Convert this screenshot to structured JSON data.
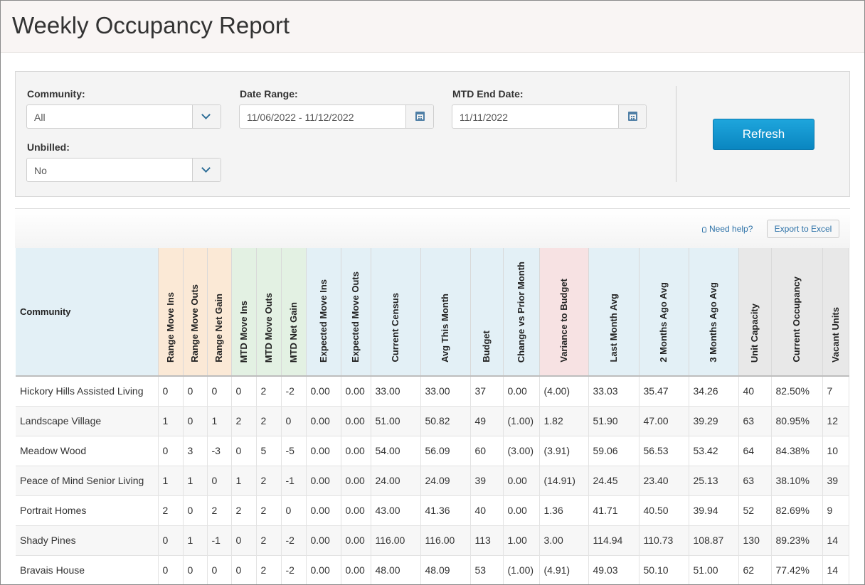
{
  "page": {
    "title": "Weekly Occupancy Report"
  },
  "filters": {
    "community_label": "Community:",
    "community_value": "All",
    "date_range_label": "Date Range:",
    "date_range_value": "11/06/2022 - 11/12/2022",
    "mtd_end_label": "MTD End Date:",
    "mtd_end_value": "11/11/2022",
    "unbilled_label": "Unbilled:",
    "unbilled_value": "No",
    "refresh_label": "Refresh"
  },
  "toolbar": {
    "help_label": "Need help?",
    "export_label": "Export to Excel"
  },
  "colors": {
    "header_blue": "#e3f0f6",
    "header_orange": "#fbe9d6",
    "header_green": "#e3f1e3",
    "header_pink": "#f7e2e3",
    "header_gray": "#e8e8e8",
    "refresh_button": "#0a86c0"
  },
  "table": {
    "columns": [
      "Community",
      "Range Move Ins",
      "Range Move Outs",
      "Range Net Gain",
      "MTD Move Ins",
      "MTD Move Outs",
      "MTD Net Gain",
      "Expected Move Ins",
      "Expected Move Outs",
      "Current Census",
      "Avg This Month",
      "Budget",
      "Change vs Prior Month",
      "Variance to Budget",
      "Last Month Avg",
      "2 Months Ago Avg",
      "3 Months Ago Avg",
      "Unit Capacity",
      "Current Occupancy",
      "Vacant Units"
    ],
    "rows": [
      [
        "Hickory Hills Assisted Living",
        "0",
        "0",
        "0",
        "0",
        "2",
        "-2",
        "0.00",
        "0.00",
        "33.00",
        "33.00",
        "37",
        "0.00",
        "(4.00)",
        "33.03",
        "35.47",
        "34.26",
        "40",
        "82.50%",
        "7"
      ],
      [
        "Landscape Village",
        "1",
        "0",
        "1",
        "2",
        "2",
        "0",
        "0.00",
        "0.00",
        "51.00",
        "50.82",
        "49",
        "(1.00)",
        "1.82",
        "51.90",
        "47.00",
        "39.29",
        "63",
        "80.95%",
        "12"
      ],
      [
        "Meadow Wood",
        "0",
        "3",
        "-3",
        "0",
        "5",
        "-5",
        "0.00",
        "0.00",
        "54.00",
        "56.09",
        "60",
        "(3.00)",
        "(3.91)",
        "59.06",
        "56.53",
        "53.42",
        "64",
        "84.38%",
        "10"
      ],
      [
        "Peace of Mind Senior Living",
        "1",
        "1",
        "0",
        "1",
        "2",
        "-1",
        "0.00",
        "0.00",
        "24.00",
        "24.09",
        "39",
        "0.00",
        "(14.91)",
        "24.45",
        "23.40",
        "25.13",
        "63",
        "38.10%",
        "39"
      ],
      [
        "Portrait Homes",
        "2",
        "0",
        "2",
        "2",
        "2",
        "0",
        "0.00",
        "0.00",
        "43.00",
        "41.36",
        "40",
        "0.00",
        "1.36",
        "41.71",
        "40.50",
        "39.94",
        "52",
        "82.69%",
        "9"
      ],
      [
        "Shady Pines",
        "0",
        "1",
        "-1",
        "0",
        "2",
        "-2",
        "0.00",
        "0.00",
        "116.00",
        "116.00",
        "113",
        "1.00",
        "3.00",
        "114.94",
        "110.73",
        "108.87",
        "130",
        "89.23%",
        "14"
      ],
      [
        "Bravais House",
        "0",
        "0",
        "0",
        "0",
        "2",
        "-2",
        "0.00",
        "0.00",
        "48.00",
        "48.09",
        "53",
        "(1.00)",
        "(4.91)",
        "49.03",
        "50.10",
        "51.00",
        "62",
        "77.42%",
        "14"
      ]
    ]
  }
}
